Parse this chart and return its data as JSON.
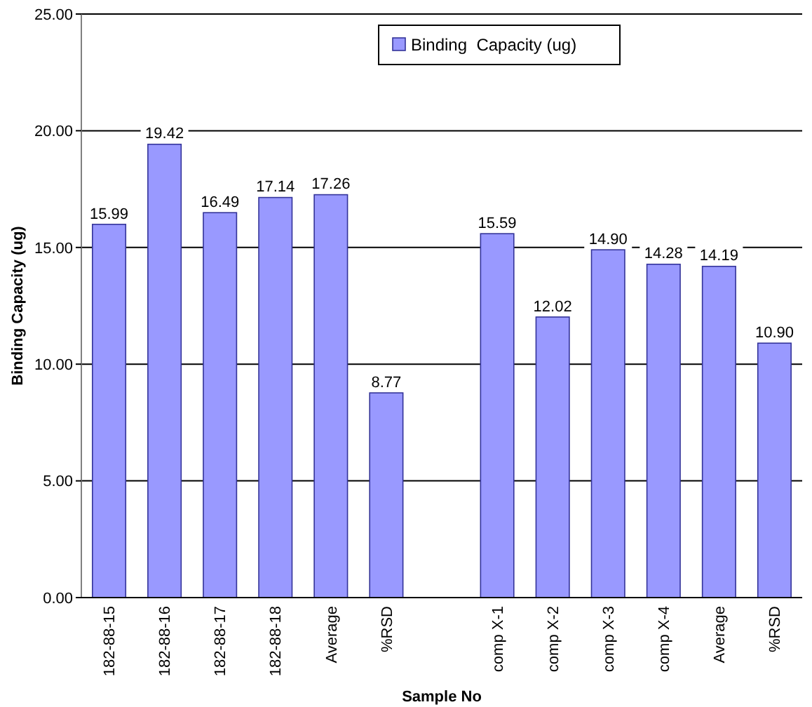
{
  "chart_data": {
    "type": "bar",
    "xlabel": "Sample No",
    "ylabel": "Binding Capacity (ug)",
    "categories": [
      "182-88-15",
      "182-88-16",
      "182-88-17",
      "182-88-18",
      "Average",
      "%RSD",
      null,
      "comp X-1",
      "comp X-2",
      "comp X-3",
      "comp X-4",
      "Average",
      "%RSD"
    ],
    "series": [
      {
        "name": "Binding  Capacity (ug)",
        "color": "#9999ff",
        "values": [
          15.99,
          19.42,
          16.49,
          17.14,
          17.26,
          8.77,
          null,
          15.59,
          12.02,
          14.9,
          14.28,
          14.19,
          10.9
        ],
        "value_labels": [
          "15.99",
          "19.42",
          "16.49",
          "17.14",
          "17.26",
          "8.77",
          null,
          "15.59",
          "12.02",
          "14.90",
          "14.28",
          "14.19",
          "10.90"
        ]
      }
    ],
    "ylim": [
      0,
      25
    ],
    "yticks": [
      {
        "value": 0,
        "label": "0.00"
      },
      {
        "value": 5,
        "label": "5.00"
      },
      {
        "value": 10,
        "label": "10.00"
      },
      {
        "value": 15,
        "label": "15.00"
      },
      {
        "value": 20,
        "label": "20.00"
      },
      {
        "value": 25,
        "label": "25.00"
      }
    ],
    "grid": "y",
    "legend": "top right"
  }
}
